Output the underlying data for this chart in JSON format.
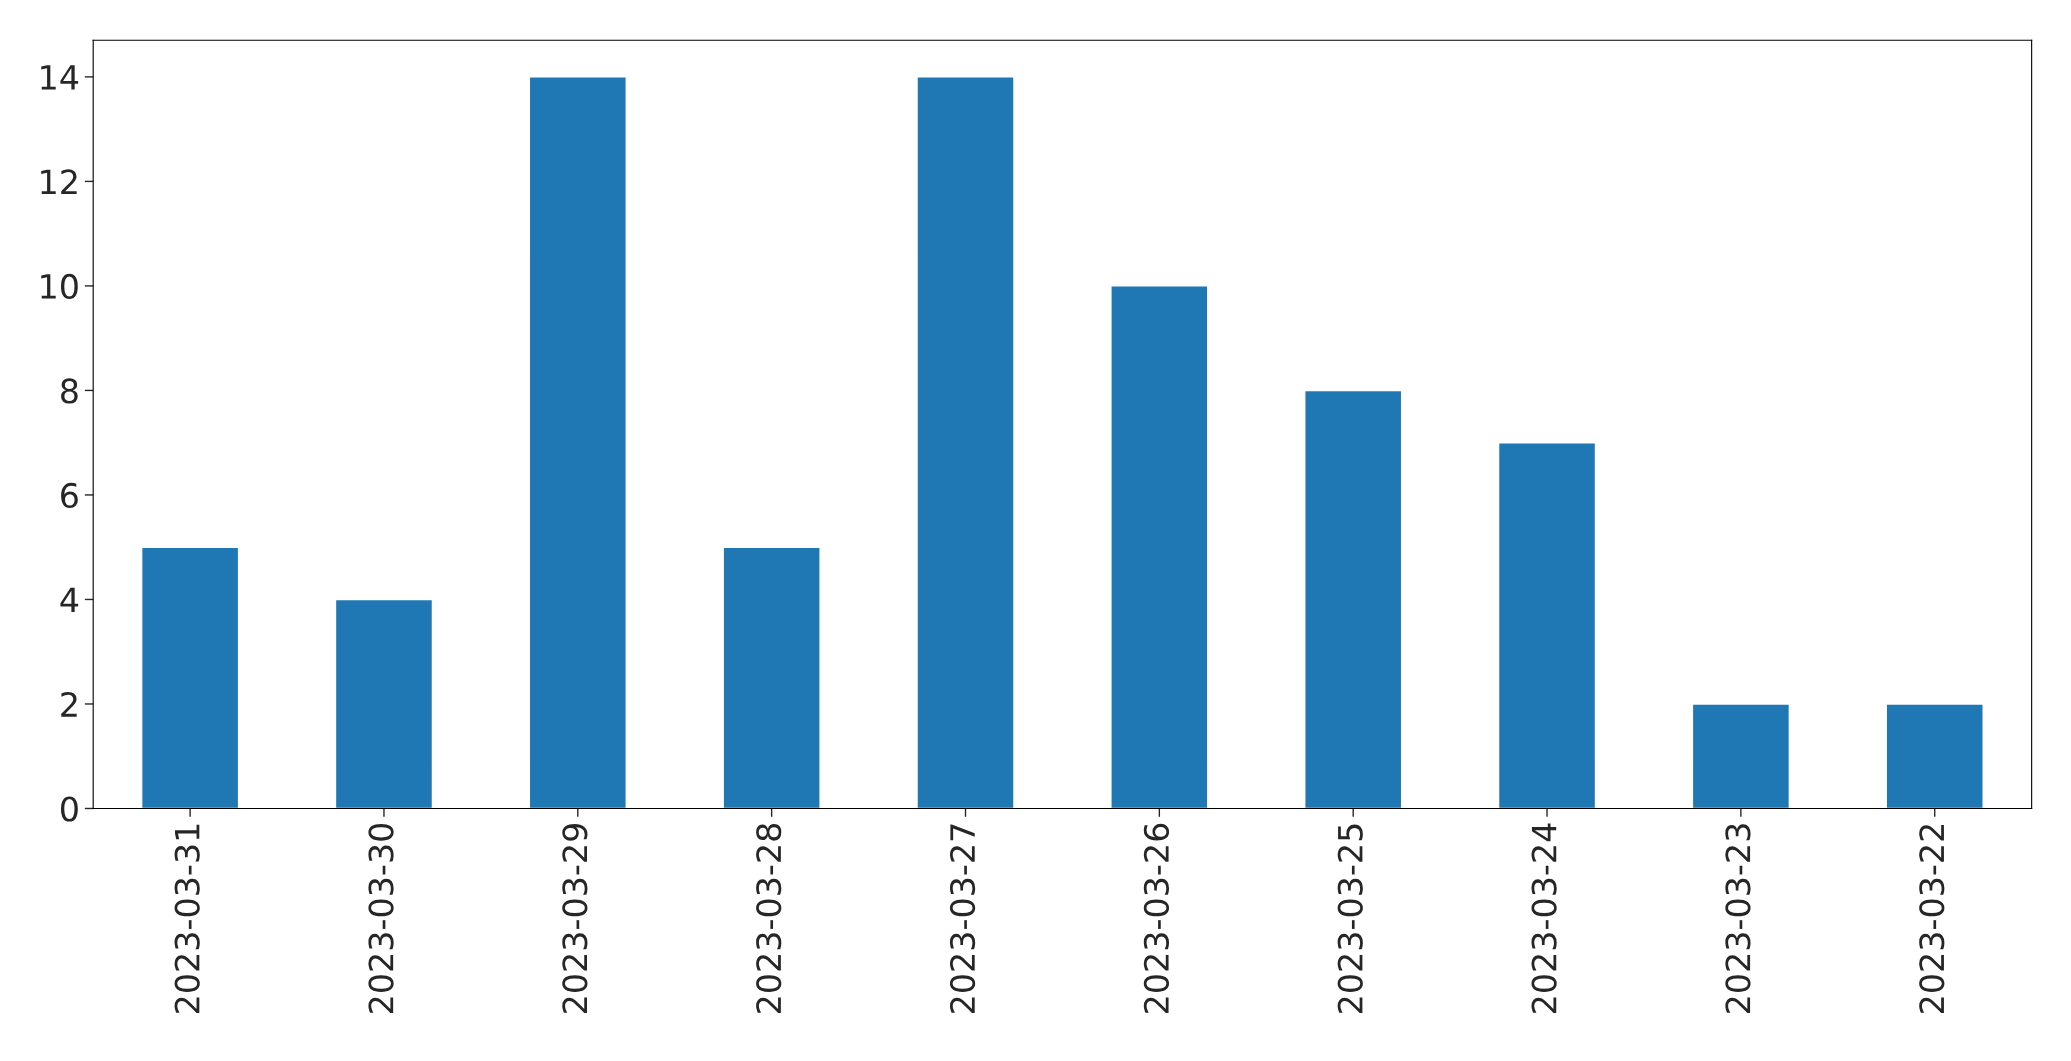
{
  "chart_data": {
    "type": "bar",
    "categories": [
      "2023-03-31",
      "2023-03-30",
      "2023-03-29",
      "2023-03-28",
      "2023-03-27",
      "2023-03-26",
      "2023-03-25",
      "2023-03-24",
      "2023-03-23",
      "2023-03-22"
    ],
    "values": [
      5,
      4,
      14,
      5,
      14,
      10,
      8,
      7,
      2,
      2
    ],
    "color": "#1f77b4",
    "ylim": [
      0,
      14.7
    ],
    "yticks": [
      0,
      2,
      4,
      6,
      8,
      10,
      12,
      14
    ],
    "grid": false
  }
}
